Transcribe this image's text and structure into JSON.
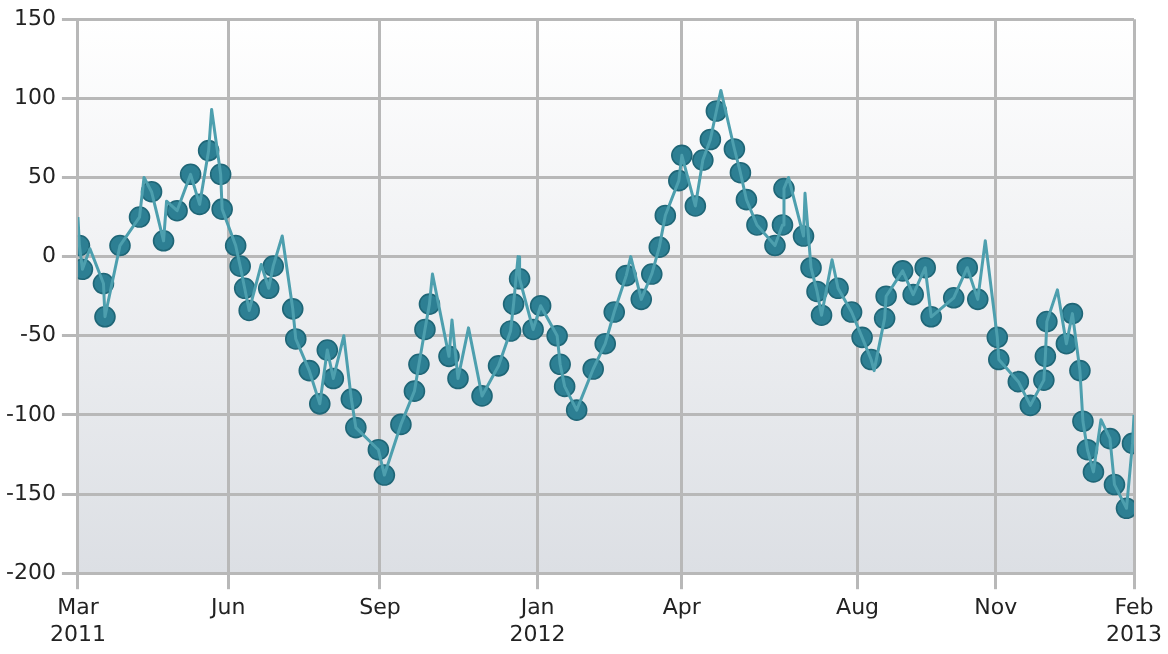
{
  "chart_data": {
    "type": "line",
    "x": [
      "2011-03-01",
      "2011-03-02",
      "2011-03-04",
      "2011-03-09",
      "2011-03-18",
      "2011-03-19",
      "2011-03-29",
      "2011-04-11",
      "2011-04-14",
      "2011-04-19",
      "2011-04-27",
      "2011-04-29",
      "2011-05-06",
      "2011-05-15",
      "2011-05-21",
      "2011-05-27",
      "2011-05-29",
      "2011-06-04",
      "2011-06-05",
      "2011-06-14",
      "2011-06-17",
      "2011-06-20",
      "2011-06-23",
      "2011-07-01",
      "2011-07-06",
      "2011-07-09",
      "2011-07-15",
      "2011-07-22",
      "2011-07-24",
      "2011-08-02",
      "2011-08-09",
      "2011-08-14",
      "2011-08-18",
      "2011-08-25",
      "2011-08-30",
      "2011-09-02",
      "2011-09-17",
      "2011-09-21",
      "2011-10-02",
      "2011-10-11",
      "2011-10-14",
      "2011-10-18",
      "2011-10-21",
      "2011-10-23",
      "2011-11-03",
      "2011-11-05",
      "2011-11-09",
      "2011-11-16",
      "2011-11-25",
      "2011-12-06",
      "2011-12-14",
      "2011-12-16",
      "2011-12-19",
      "2011-12-20",
      "2011-12-29",
      "2012-01-03",
      "2012-01-14",
      "2012-01-16",
      "2012-01-19",
      "2012-01-27",
      "2012-02-07",
      "2012-02-15",
      "2012-02-21",
      "2012-02-29",
      "2012-03-03",
      "2012-03-10",
      "2012-03-17",
      "2012-03-22",
      "2012-03-26",
      "2012-04-04",
      "2012-04-06",
      "2012-04-15",
      "2012-04-20",
      "2012-04-25",
      "2012-04-29",
      "2012-05-02",
      "2012-05-11",
      "2012-05-15",
      "2012-05-19",
      "2012-05-26",
      "2012-06-07",
      "2012-06-12",
      "2012-06-13",
      "2012-06-16",
      "2012-06-26",
      "2012-06-27",
      "2012-07-01",
      "2012-07-05",
      "2012-07-08",
      "2012-07-15",
      "2012-07-19",
      "2012-07-28",
      "2012-08-04",
      "2012-08-10",
      "2012-08-12",
      "2012-08-19",
      "2012-08-20",
      "2012-08-31",
      "2012-09-07",
      "2012-09-15",
      "2012-09-19",
      "2012-10-04",
      "2012-10-13",
      "2012-10-20",
      "2012-10-25",
      "2012-11-02",
      "2012-11-03",
      "2012-11-16",
      "2012-11-24",
      "2012-12-03",
      "2012-12-04",
      "2012-12-05",
      "2012-12-12",
      "2012-12-18",
      "2012-12-22",
      "2012-12-27",
      "2012-12-29",
      "2013-01-01",
      "2013-01-05",
      "2013-01-10",
      "2013-01-16",
      "2013-01-19",
      "2013-01-27",
      "2013-01-31",
      "2013-02-01"
    ],
    "series": [
      {
        "type": "line",
        "color": "#4d9fae",
        "marker": "none",
        "values": [
          25,
          7,
          -8,
          5,
          -17,
          -38,
          7,
          25,
          50,
          41,
          10,
          35,
          29,
          52,
          33,
          67,
          93,
          52,
          30,
          7,
          -6,
          -20,
          -34,
          -5,
          -20,
          -6,
          13,
          -33,
          -52,
          -72,
          -93,
          -59,
          -77,
          -50,
          -90,
          -108,
          -122,
          -138,
          -106,
          -85,
          -68,
          -46,
          -30,
          -11,
          -63,
          -40,
          -77,
          -45,
          -88,
          -69,
          -47,
          -30,
          0,
          -14,
          -46,
          -31,
          -50,
          -68,
          -82,
          -97,
          -71,
          -55,
          -35,
          -12,
          0,
          -27,
          -11,
          6,
          26,
          48,
          64,
          32,
          61,
          74,
          92,
          105,
          68,
          53,
          36,
          20,
          7,
          20,
          43,
          50,
          13,
          40,
          -7,
          -22,
          -37,
          -2,
          -20,
          -35,
          -51,
          -65,
          -72,
          -39,
          -25,
          -9,
          -24,
          -7,
          -38,
          -26,
          -7,
          -27,
          10,
          -51,
          -65,
          -79,
          -94,
          -78,
          -63,
          -41,
          -21,
          -55,
          -36,
          -72,
          -104,
          -122,
          -136,
          -103,
          -115,
          -144,
          -159,
          -118,
          -100
        ]
      },
      {
        "type": "scatter",
        "color": "#2d7f93",
        "marker": "circle",
        "values": [
          null,
          7,
          -8,
          null,
          -17,
          -38,
          7,
          25,
          null,
          41,
          10,
          null,
          29,
          52,
          33,
          67,
          null,
          52,
          30,
          7,
          -6,
          -20,
          -34,
          null,
          -20,
          -6,
          null,
          -33,
          -52,
          -72,
          -93,
          -59,
          -77,
          null,
          -90,
          -108,
          -122,
          -138,
          -106,
          -85,
          -68,
          -46,
          -30,
          null,
          -63,
          null,
          -77,
          null,
          -88,
          -69,
          -47,
          -30,
          null,
          -14,
          -46,
          -31,
          -50,
          -68,
          -82,
          -97,
          -71,
          -55,
          -35,
          -12,
          null,
          -27,
          -11,
          6,
          26,
          48,
          64,
          32,
          61,
          74,
          92,
          null,
          68,
          53,
          36,
          20,
          7,
          20,
          43,
          null,
          13,
          null,
          -7,
          -22,
          -37,
          null,
          -20,
          -35,
          -51,
          -65,
          null,
          -39,
          -25,
          -9,
          -24,
          -7,
          -38,
          -26,
          -7,
          -27,
          null,
          -51,
          -65,
          -79,
          -94,
          -78,
          -63,
          -41,
          null,
          -55,
          -36,
          -72,
          -104,
          -122,
          -136,
          null,
          -115,
          -144,
          -159,
          -118,
          null
        ]
      }
    ],
    "xlim": [
      "2011-03-01",
      "2013-02-01"
    ],
    "xticks": [
      {
        "value": "2011-03-01",
        "label": "Mar\n2011"
      },
      {
        "value": "2011-06-09",
        "label": "Jun"
      },
      {
        "value": "2011-09-18",
        "label": "Sep"
      },
      {
        "value": "2012-01-01",
        "label": "Jan\n2012"
      },
      {
        "value": "2012-04-06",
        "label": "Apr"
      },
      {
        "value": "2012-08-01",
        "label": "Aug"
      },
      {
        "value": "2012-11-01",
        "label": "Nov"
      },
      {
        "value": "2013-02-01",
        "label": "Feb\n2013"
      }
    ],
    "ylim": [
      -200,
      150
    ],
    "yticks": [
      -200,
      -150,
      -100,
      -50,
      0,
      50,
      100,
      150
    ],
    "grid": true
  }
}
